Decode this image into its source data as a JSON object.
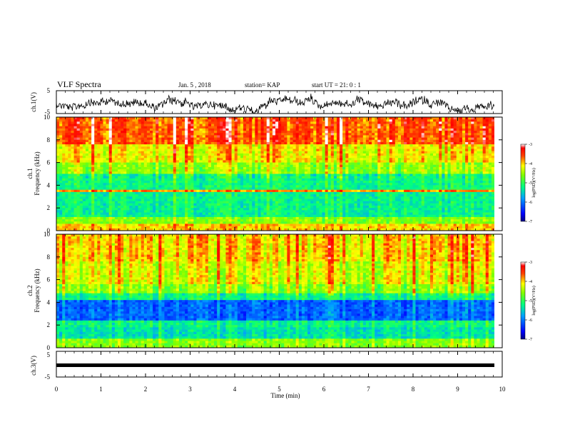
{
  "header": {
    "title": "VLF Spectra",
    "date": "Jan. 5 , 2018",
    "station": "station= KAP",
    "start": "start UT =  21: 0  : 1"
  },
  "chart_data": [
    {
      "type": "line",
      "panel": "ch1-waveform",
      "ylabel": "ch.1(V)",
      "yticks": [
        "5",
        "-5"
      ],
      "ylim": [
        -5,
        5
      ],
      "xlim": [
        0,
        10
      ],
      "series_color": "#000000"
    },
    {
      "type": "heatmap",
      "panel": "ch1-spectrogram",
      "ylabel_line1": "ch.1",
      "ylabel_line2": "Frequency (kHz)",
      "yticks": [
        "0",
        "2",
        "4",
        "6",
        "8",
        "10"
      ],
      "ylim": [
        0,
        10
      ],
      "xlim": [
        0,
        10
      ],
      "colorbar": {
        "label": "log(PSD)(V²/Hz)",
        "ticks": [
          "-3",
          "-4",
          "-5",
          "-6",
          "-7"
        ],
        "range": [
          -7,
          -3
        ]
      }
    },
    {
      "type": "heatmap",
      "panel": "ch2-spectrogram",
      "ylabel_line1": "ch.2",
      "ylabel_line2": "Frequency (kHz)",
      "yticks": [
        "0",
        "2",
        "4",
        "6",
        "8",
        "10"
      ],
      "ylim": [
        0,
        10
      ],
      "xlim": [
        0,
        10
      ],
      "colorbar": {
        "label": "log(PSD)(V²/Hz)",
        "ticks": [
          "-3",
          "-4",
          "-5",
          "-6",
          "-7"
        ],
        "range": [
          -7,
          -3
        ]
      }
    },
    {
      "type": "line",
      "panel": "ch3-waveform",
      "ylabel": "ch.3(V)",
      "yticks": [
        "5",
        "-5"
      ],
      "ylim": [
        -5,
        5
      ],
      "xlim": [
        0,
        10
      ],
      "series_color": "#000000"
    }
  ],
  "xaxis": {
    "label": "Time (min)",
    "ticks": [
      "0",
      "1",
      "2",
      "3",
      "4",
      "5",
      "6",
      "7",
      "8",
      "9",
      "10"
    ]
  }
}
